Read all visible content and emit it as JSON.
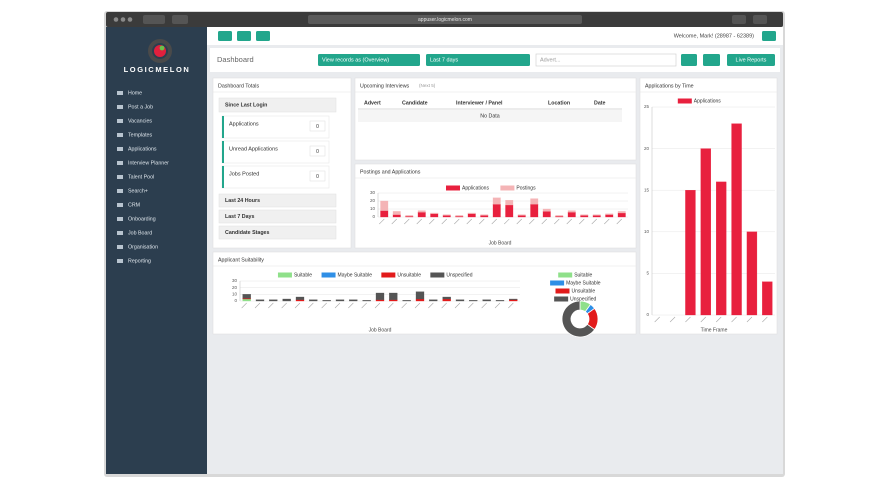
{
  "browser": {
    "url": "appuser.logicmelon.com"
  },
  "logo": "LOGICMELON",
  "sidebar": [
    "Home",
    "Post a Job",
    "Vacancies",
    "Templates",
    "Applications",
    "Interview Planner",
    "Talent Pool",
    "Search+",
    "CRM",
    "Onboarding",
    "Job Board",
    "Organisation",
    "Reporting"
  ],
  "header": {
    "welcome": "Welcome, Mark! (28987 - 62389)"
  },
  "toolbar": {
    "title": "Dashboard",
    "view": "View records as (Overview)",
    "period": "Last 7 days",
    "search_placeholder": "Advert...",
    "live_reports": "Live Reports"
  },
  "totals": {
    "title": "Dashboard Totals",
    "since": "Since Last Login",
    "cards": [
      {
        "label": "Applications",
        "value": 0
      },
      {
        "label": "Unread Applications",
        "value": 0
      },
      {
        "label": "Jobs Posted",
        "value": 0
      }
    ],
    "sections": [
      "Last 24 Hours",
      "Last 7 Days",
      "Candidate Stages"
    ]
  },
  "interviews": {
    "title": "Upcoming Interviews",
    "note": "(Next 5)",
    "columns": [
      "Advert",
      "Candidate",
      "Interviewer / Panel",
      "Location",
      "Date"
    ],
    "empty": "No Data"
  },
  "chart_data": [
    {
      "type": "bar",
      "stacked": true,
      "title": "Postings and Applications",
      "x_label": "Job Board",
      "categories": [
        null,
        null,
        null,
        null,
        null,
        null,
        null,
        null,
        null,
        null,
        null,
        null,
        null,
        null,
        null,
        null,
        null,
        null,
        null,
        null
      ],
      "series": [
        {
          "name": "Applications",
          "color": "#e8203e",
          "values": [
            8,
            3,
            1,
            6,
            4,
            2,
            1,
            4,
            2,
            16,
            15,
            2,
            16,
            7,
            1,
            6,
            2,
            2,
            3,
            5
          ]
        },
        {
          "name": "Postings",
          "color": "#f4b4b6",
          "values": [
            12,
            4,
            1,
            2,
            1,
            1,
            1,
            1,
            1,
            8,
            6,
            1,
            7,
            3,
            1,
            2,
            1,
            1,
            1,
            2
          ]
        }
      ],
      "ylim": [
        0,
        30
      ],
      "yticks": [
        0,
        10,
        20,
        30
      ],
      "grid": true,
      "legend": "top"
    },
    {
      "type": "bar",
      "stacked": true,
      "title": "Applications by Time",
      "x_label": "Time Frame",
      "categories": [
        null,
        null,
        null,
        null,
        null,
        null,
        null,
        null
      ],
      "series": [
        {
          "name": "Applications",
          "color": "#e8203e",
          "values": [
            0,
            0,
            15,
            20,
            16,
            23,
            10,
            4
          ]
        }
      ],
      "ylim": [
        0,
        25
      ],
      "yticks": [
        0,
        5,
        10,
        15,
        20,
        25
      ],
      "grid": true,
      "legend": "top"
    },
    {
      "type": "bar",
      "stacked": true,
      "title": "Applicant Suitability",
      "x_label": "Job Board",
      "categories": [
        null,
        null,
        null,
        null,
        null,
        null,
        null,
        null,
        null,
        null,
        null,
        null,
        null,
        null,
        null,
        null,
        null,
        null,
        null,
        null,
        null
      ],
      "series": [
        {
          "name": "Suitable",
          "color": "#8fe08a",
          "values": [
            3,
            0,
            0,
            0,
            0,
            0,
            0,
            0,
            0,
            0,
            0,
            0,
            0,
            0,
            0,
            0,
            0,
            0,
            0,
            0,
            0
          ]
        },
        {
          "name": "Maybe Suitable",
          "color": "#2f8fe6",
          "values": [
            0,
            0,
            0,
            0,
            0,
            0,
            0,
            0,
            0,
            0,
            0,
            0,
            0,
            0,
            0,
            0,
            0,
            0,
            0,
            0,
            0
          ]
        },
        {
          "name": "Unsuitable",
          "color": "#e21b1b",
          "values": [
            1,
            0,
            0,
            0,
            2,
            0,
            0,
            0,
            0,
            0,
            2,
            2,
            0,
            3,
            0,
            3,
            0,
            0,
            0,
            0,
            2
          ]
        },
        {
          "name": "Unspecified",
          "color": "#555555",
          "values": [
            6,
            2,
            2,
            3,
            4,
            2,
            1,
            2,
            2,
            1,
            10,
            10,
            1,
            11,
            2,
            3,
            2,
            1,
            2,
            1,
            1
          ]
        }
      ],
      "ylim": [
        0,
        30
      ],
      "yticks": [
        0,
        10,
        20,
        30
      ],
      "grid": true,
      "legend": "top"
    },
    {
      "type": "pie",
      "donut": true,
      "categories": [
        "Suitable",
        "Maybe Suitable",
        "Unsuitable",
        "Unspecified"
      ],
      "colors": [
        "#8fe08a",
        "#2f8fe6",
        "#e21b1b",
        "#555555"
      ],
      "values": [
        10,
        5,
        20,
        65
      ],
      "legend": "top"
    }
  ]
}
